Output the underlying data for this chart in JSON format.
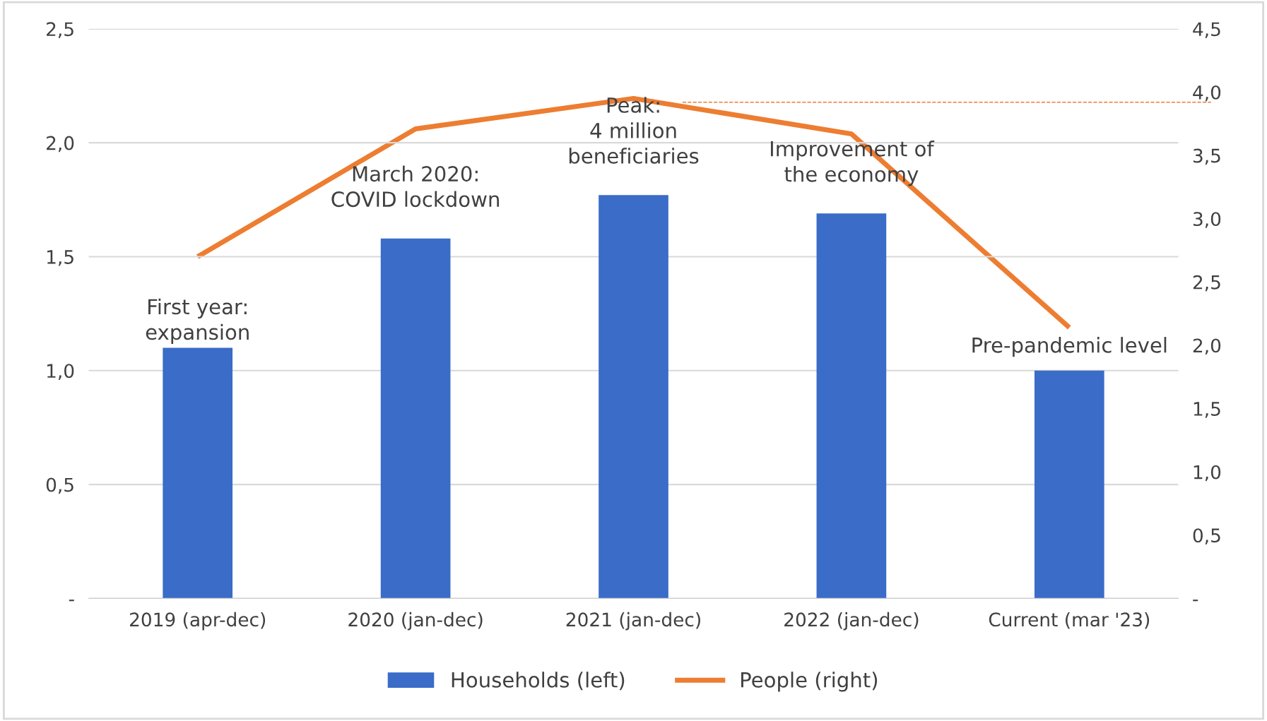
{
  "chart_data": {
    "type": "bar",
    "categories": [
      "2019 (apr-dec)",
      "2020 (jan-dec)",
      "2021 (jan-dec)",
      "2022 (jan-dec)",
      "Current (mar '23)"
    ],
    "series": [
      {
        "name": "Households (left)",
        "color": "#3a6cc8",
        "values": [
          1.1,
          1.58,
          1.77,
          1.69,
          1.0
        ]
      },
      {
        "name": "People (right)",
        "type": "line",
        "axis": "y2",
        "color": "#ed7d31",
        "values": [
          2.7,
          3.71,
          3.95,
          3.67,
          2.14
        ]
      }
    ],
    "ylim": [
      0,
      2.5
    ],
    "yticks": [
      {
        "value": 0,
        "label": "-"
      },
      {
        "value": 0.5,
        "label": "0,5"
      },
      {
        "value": 1.0,
        "label": "1,0"
      },
      {
        "value": 1.5,
        "label": "1,5"
      },
      {
        "value": 2.0,
        "label": "2,0"
      },
      {
        "value": 2.5,
        "label": "2,5"
      }
    ],
    "y2lim": [
      0,
      4.5
    ],
    "y2ticks": [
      {
        "value": 0,
        "label": "-"
      },
      {
        "value": 0.5,
        "label": "0,5"
      },
      {
        "value": 1.0,
        "label": "1,0"
      },
      {
        "value": 1.5,
        "label": "1,5"
      },
      {
        "value": 2.0,
        "label": "2,0"
      },
      {
        "value": 2.5,
        "label": "2,5"
      },
      {
        "value": 3.0,
        "label": "3,0"
      },
      {
        "value": 3.5,
        "label": "3,5"
      },
      {
        "value": 4.0,
        "label": "4,0"
      },
      {
        "value": 4.5,
        "label": "4,5"
      }
    ],
    "ref_lines": [
      {
        "axis": "y2",
        "value": 3.92,
        "color": "#ed7d31",
        "line_style": "dashed"
      }
    ],
    "annotations": [
      "First year:\nexpansion",
      "March 2020:\nCOVID lockdown",
      "Peak:\n4 million\nbeneficiaries",
      "Improvement of\nthe economy",
      "Pre-pandemic level"
    ],
    "grid": "y",
    "legend": "bottom"
  }
}
